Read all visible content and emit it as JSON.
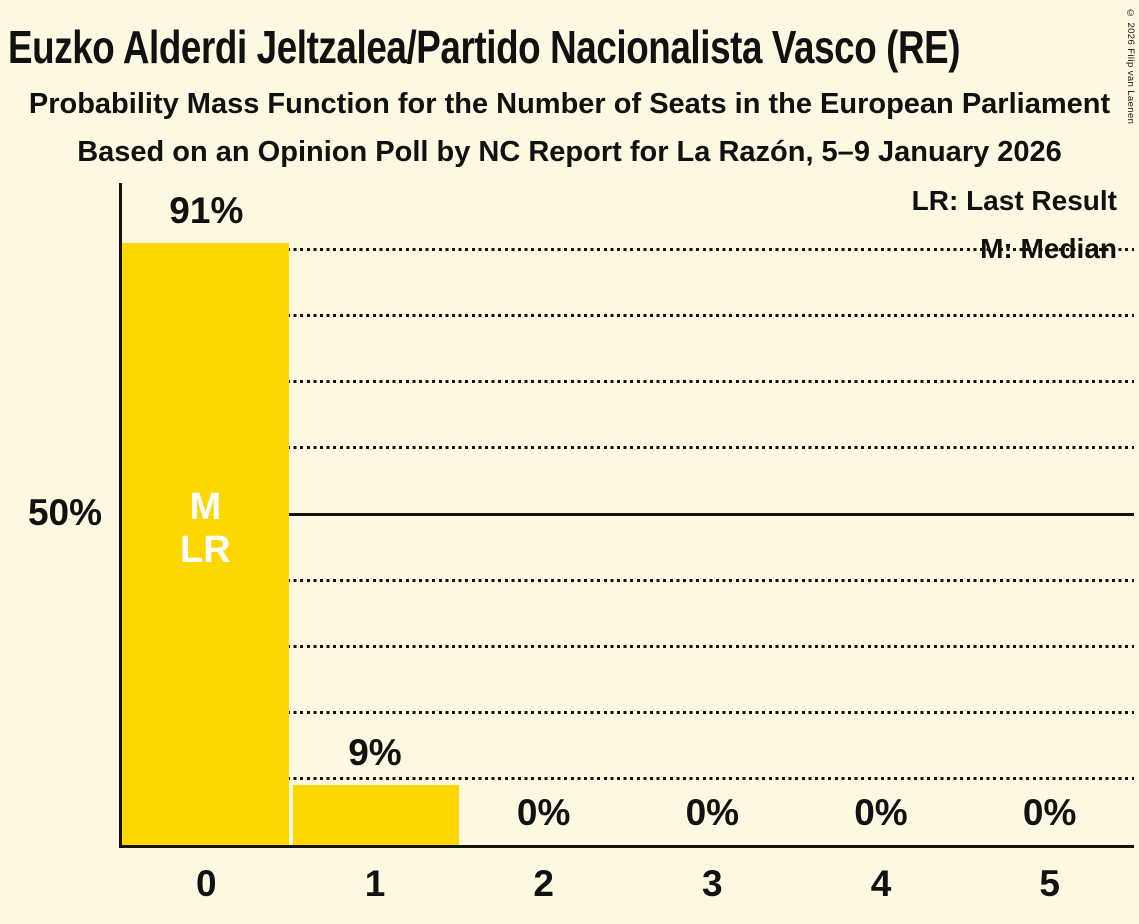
{
  "header": {
    "title": "Euzko Alderdi Jeltzalea/Partido Nacionalista Vasco (RE)",
    "subtitle": "Probability Mass Function for the Number of Seats in the European Parliament",
    "source_line": "Based on an Opinion Poll by NC Report for La Razón, 5–9 January 2026",
    "copyright": "© 2026 Filip van Laenen"
  },
  "legend": {
    "last_result": "LR: Last Result",
    "median": "M: Median"
  },
  "chart_data": {
    "type": "bar",
    "title": "Euzko Alderdi Jeltzalea/Partido Nacionalista Vasco (RE)",
    "subtitle": "Probability Mass Function for the Number of Seats in the European Parliament",
    "categories": [
      "0",
      "1",
      "2",
      "3",
      "4",
      "5"
    ],
    "values": [
      91,
      9,
      0,
      0,
      0,
      0
    ],
    "value_labels": [
      "91%",
      "9%",
      "0%",
      "0%",
      "0%",
      "0%"
    ],
    "xlabel": "",
    "ylabel": "",
    "ylim": [
      0,
      100
    ],
    "y_axis_label": "50%",
    "dotted_gridlines_pct": [
      10,
      20,
      30,
      40,
      60,
      70,
      80,
      90
    ],
    "solid_gridline_pct": 50,
    "grid": "horizontal dotted every 10%, solid at 50%",
    "legend_position": "top-right",
    "bar_color": "#FFD700",
    "background_color": "#FCF8E2",
    "median_bar_category": "0",
    "last_result_bar_category": "0",
    "in_bar_annotation_lines": [
      "M",
      "LR"
    ],
    "in_bar_annotation_color": "#FFFFFF"
  }
}
